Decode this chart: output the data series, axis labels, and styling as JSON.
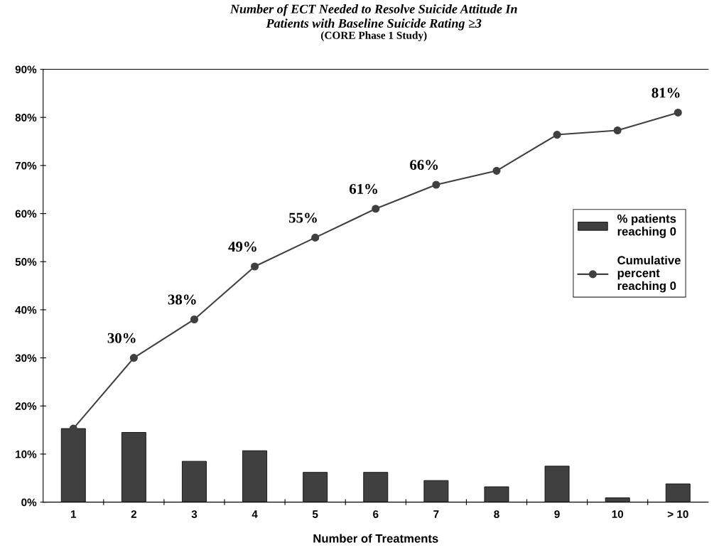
{
  "chart_data": {
    "type": "bar",
    "title": "Number of ECT Needed to Resolve Suicide Attitude In\nPatients with Baseline Suicide Rating ≥3",
    "subtitle": "(CORE Phase 1 Study)",
    "xlabel": "Number of Treatments",
    "categories": [
      "1",
      "2",
      "3",
      "4",
      "5",
      "6",
      "7",
      "8",
      "9",
      "10",
      "> 10"
    ],
    "series": [
      {
        "name": "% patients\nreaching 0",
        "color": "#404040",
        "values": [
          15.3,
          14.5,
          8.5,
          10.7,
          6.2,
          6.2,
          4.5,
          3.2,
          7.5,
          0.9,
          3.8
        ]
      },
      {
        "name": "Cumulative\npercent\nreaching 0",
        "type": "line",
        "color": "#404040",
        "marker": "circle",
        "values": [
          15.3,
          30,
          38,
          49,
          55,
          61,
          66,
          68.9,
          76.4,
          77.3,
          81
        ],
        "value_labels": [
          null,
          "30%",
          "38%",
          "49%",
          "55%",
          "61%",
          "66%",
          null,
          null,
          null,
          "81%"
        ]
      }
    ],
    "ylim": [
      0,
      90
    ],
    "yticks": [
      {
        "value": 0,
        "label": "0%"
      },
      {
        "value": 10,
        "label": "10%"
      },
      {
        "value": 20,
        "label": "20%"
      },
      {
        "value": 30,
        "label": "30%"
      },
      {
        "value": 40,
        "label": "40%"
      },
      {
        "value": 50,
        "label": "50%"
      },
      {
        "value": 60,
        "label": "60%"
      },
      {
        "value": 70,
        "label": "70%"
      },
      {
        "value": 80,
        "label": "80%"
      },
      {
        "value": 90,
        "label": "90%"
      }
    ],
    "grid": false,
    "legend": "center right"
  }
}
